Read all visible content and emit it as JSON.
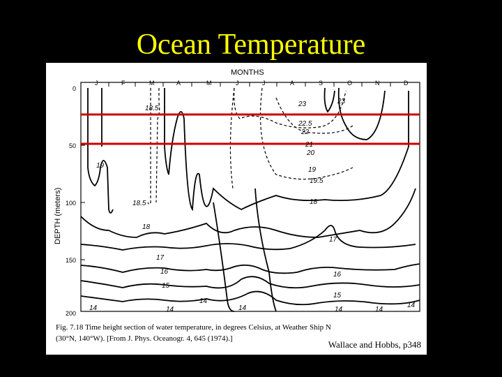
{
  "slide": {
    "title": "Ocean Temperature",
    "credit": "Wallace and Hobbs, p348"
  },
  "figure": {
    "months_label": "MONTHS",
    "months": [
      "J",
      "F",
      "M",
      "A",
      "M",
      "J",
      "J",
      "A",
      "S",
      "O",
      "N",
      "D"
    ],
    "depth_label": "DEPTH (meters)",
    "depth_ticks": [
      "0",
      "50",
      "100",
      "150",
      "200"
    ],
    "isotherm_labels": [
      "23",
      "23",
      "18.5",
      "22.5",
      "22",
      "21",
      "20",
      "19",
      "19",
      "19.5",
      "18.5",
      "18",
      "18",
      "17",
      "17",
      "16",
      "16",
      "15",
      "15",
      "14",
      "14",
      "14",
      "14",
      "14",
      "14",
      "14"
    ],
    "caption_line1": "Fig. 7.18   Time height section of water temperature, in degrees Celsius, at Weather Ship N",
    "caption_line2": "(30°N, 140°W). [From J. Phys. Oceanogr. 4, 645 (1974).]",
    "reference_lines_color": "#cc0000"
  }
}
